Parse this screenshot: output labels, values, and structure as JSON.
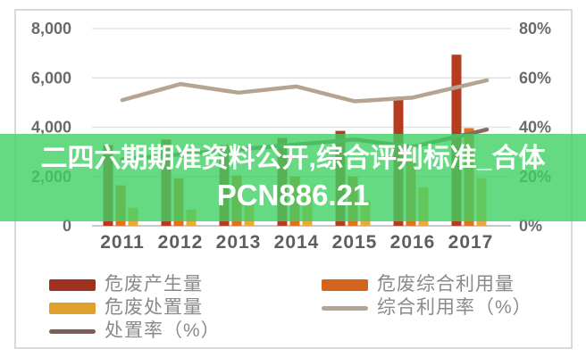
{
  "overlay_banner": {
    "line1": "二四六期期准资料公开,综合评判标准_合体",
    "line2": "PCN886.21",
    "background_color_rgba": "rgba(64,207,100,0.8)",
    "text_color": "#ffffff"
  },
  "legend": {
    "col1": [
      {
        "label": "危废产生量",
        "swatch": "rect",
        "color": "#9e3120"
      },
      {
        "label": "危废处置量",
        "swatch": "rect",
        "color": "#e0a02e"
      },
      {
        "label": "处置率（%）",
        "swatch": "line",
        "color": "#7f5c55"
      }
    ],
    "col2": [
      {
        "label": "危废综合利用量",
        "swatch": "rect",
        "color": "#d4641c"
      },
      {
        "label": "综合利用率（%）",
        "swatch": "line",
        "color": "#b3a493"
      }
    ]
  },
  "chart_data": {
    "type": "bar",
    "subtype": "grouped-bars-with-lines",
    "categories": [
      "2011",
      "2012",
      "2013",
      "2014",
      "2015",
      "2016",
      "2017"
    ],
    "bar_series": [
      {
        "name": "危废产生量",
        "color": "#b53c20",
        "values": [
          3270,
          3500,
          3270,
          3560,
          3850,
          5200,
          6940
        ]
      },
      {
        "name": "危废综合利用量",
        "color": "#e0711f",
        "values": [
          1640,
          1930,
          2040,
          2000,
          2000,
          2650,
          3960
        ]
      },
      {
        "name": "危废处置量",
        "color": "#eaa93e",
        "values": [
          730,
          650,
          900,
          1560,
          1020,
          1560,
          1930
        ]
      }
    ],
    "line_series": [
      {
        "name": "综合利用率（%）",
        "color": "#b4a491",
        "axis": "right",
        "values": [
          51,
          57.5,
          54,
          56.5,
          50.5,
          52,
          57.5
        ]
      },
      {
        "name": "处置率（%）",
        "color": "#8a6a5f",
        "axis": "right",
        "values": [
          27,
          29,
          31,
          33,
          35,
          32,
          37.5
        ]
      }
    ],
    "left_axis": {
      "min": 0,
      "max": 8000,
      "ticks": [
        "0",
        "2,000",
        "4,000",
        "6,000",
        "8,000"
      ]
    },
    "right_axis": {
      "min": 0,
      "max": 80,
      "ticks": [
        "0%",
        "20%",
        "40%",
        "60%",
        "80%"
      ]
    },
    "grid": "horizontal",
    "legend_position": "bottom",
    "tick_label_color": "#6a6a6a",
    "grid_color": "#e2e2e2",
    "baseline_color": "#c8c8c8"
  }
}
